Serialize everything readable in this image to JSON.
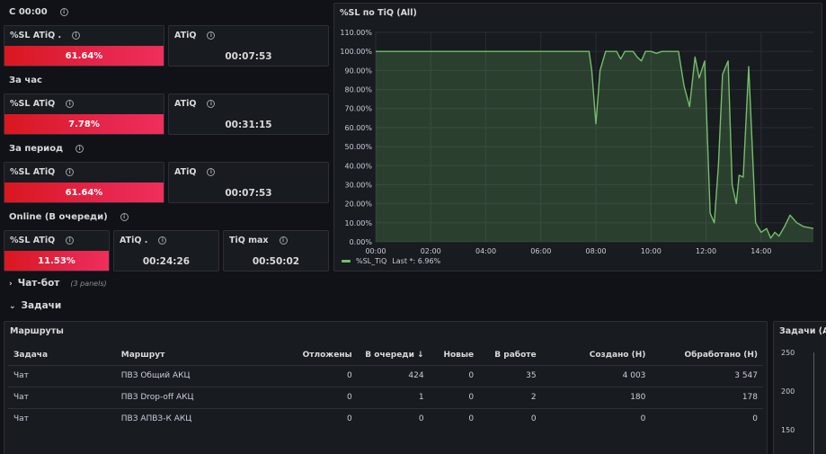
{
  "sections": {
    "since_midnight": "С 00:00",
    "per_hour": "За час",
    "per_period": "За период",
    "online": "Online (В очереди)"
  },
  "stats": {
    "s1_sl_title": "%SL ATiQ .",
    "s1_sl_value": "61.64%",
    "s1_atiq_title": "ATiQ",
    "s1_atiq_value": "00:07:53",
    "s2_sl_title": "%SL ATiQ",
    "s2_sl_value": "7.78%",
    "s2_atiq_title": "ATiQ",
    "s2_atiq_value": "00:31:15",
    "s3_sl_title": "%SL ATiQ",
    "s3_sl_value": "61.64%",
    "s3_atiq_title": "ATiQ",
    "s3_atiq_value": "00:07:53",
    "s4_sl_title": "%SL ATiQ",
    "s4_sl_value": "11.53%",
    "s4_atiq_title": "ATiQ .",
    "s4_atiq_value": "00:24:26",
    "s4_tiq_title": "TiQ max",
    "s4_tiq_value": "00:50:02"
  },
  "colors": {
    "stat_red": "#e5254a",
    "series_green": "#73bf69",
    "panel_bg": "#181b1f",
    "page_bg": "#111217"
  },
  "chart_data": {
    "type": "area",
    "title": "%SL по TiQ (All)",
    "y_ticks": [
      "0.00%",
      "10.00%",
      "20.00%",
      "30.00%",
      "40.00%",
      "50.00%",
      "60.00%",
      "70.00%",
      "80.00%",
      "90.00%",
      "100.00%",
      "110.00%"
    ],
    "x_ticks": [
      "00:00",
      "02:00",
      "04:00",
      "06:00",
      "08:00",
      "10:00",
      "12:00",
      "14:00"
    ],
    "ylim": [
      0,
      110
    ],
    "xlim": [
      0,
      15.9
    ],
    "grid": true,
    "legend": "bottom-left",
    "series": [
      {
        "name": "%SL_TiQ",
        "legend_suffix": "Last *: 6.96%",
        "color": "#73bf69",
        "points": [
          [
            0,
            100
          ],
          [
            7.75,
            100
          ],
          [
            7.85,
            90
          ],
          [
            8.0,
            62
          ],
          [
            8.15,
            90
          ],
          [
            8.35,
            100
          ],
          [
            8.75,
            100
          ],
          [
            8.9,
            96
          ],
          [
            9.05,
            100
          ],
          [
            9.35,
            100
          ],
          [
            9.5,
            97
          ],
          [
            9.65,
            95
          ],
          [
            9.8,
            100
          ],
          [
            10.0,
            100
          ],
          [
            10.2,
            99
          ],
          [
            10.4,
            100
          ],
          [
            11.0,
            100
          ],
          [
            11.2,
            82
          ],
          [
            11.4,
            71
          ],
          [
            11.6,
            97
          ],
          [
            11.75,
            86
          ],
          [
            11.95,
            95
          ],
          [
            12.15,
            15
          ],
          [
            12.3,
            10
          ],
          [
            12.45,
            40
          ],
          [
            12.6,
            88
          ],
          [
            12.8,
            95
          ],
          [
            12.95,
            30
          ],
          [
            13.1,
            20
          ],
          [
            13.2,
            35
          ],
          [
            13.35,
            34
          ],
          [
            13.55,
            92
          ],
          [
            13.8,
            10
          ],
          [
            14.0,
            5
          ],
          [
            14.2,
            7
          ],
          [
            14.35,
            2
          ],
          [
            14.5,
            5
          ],
          [
            14.65,
            3
          ],
          [
            14.85,
            8
          ],
          [
            15.05,
            14
          ],
          [
            15.3,
            10
          ],
          [
            15.55,
            8
          ],
          [
            15.9,
            7
          ]
        ]
      }
    ]
  },
  "rows": {
    "chatbot": "Чат-бот",
    "chatbot_sub": "(3 panels)",
    "tasks": "Задачи"
  },
  "routes_panel": {
    "title": "Маршруты",
    "columns": [
      "Задача",
      "Маршрут",
      "Отложены",
      "В очереди",
      "Новые",
      "В работе",
      "Создано (Н)",
      "Обработано (Н)"
    ],
    "sort_arrow": "↓",
    "rows": [
      [
        "Чат",
        "ПВЗ Общий АКЦ",
        "0",
        "424",
        "0",
        "35",
        "4 003",
        "3 547"
      ],
      [
        "Чат",
        "ПВЗ Drop-off АКЦ",
        "0",
        "1",
        "0",
        "2",
        "180",
        "178"
      ],
      [
        "Чат",
        "ПВЗ АПВЗ-К АКЦ",
        "0",
        "0",
        "0",
        "0",
        "0",
        "0"
      ]
    ]
  },
  "tasks_panel": {
    "title": "Задачи (All",
    "y_ticks": [
      "250",
      "200",
      "150"
    ]
  }
}
